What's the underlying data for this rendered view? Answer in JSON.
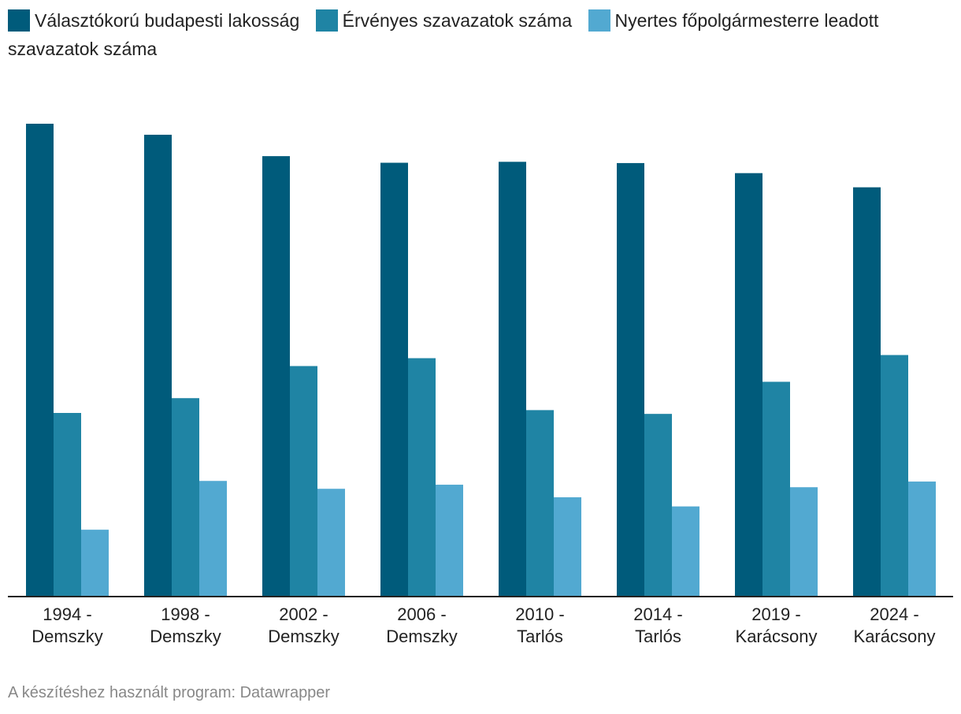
{
  "chart_data": {
    "type": "bar",
    "title": "",
    "xlabel": "",
    "ylabel": "",
    "ylim": [
      0,
      1500000
    ],
    "categories": [
      [
        "1994 -",
        "Demszky"
      ],
      [
        "1998 -",
        "Demszky"
      ],
      [
        "2002 -",
        "Demszky"
      ],
      [
        "2006 -",
        "Demszky"
      ],
      [
        "2010 -",
        "Tarlós"
      ],
      [
        "2014 -",
        "Tarlós"
      ],
      [
        "2019 -",
        "Karácsony"
      ],
      [
        "2024 -",
        "Karácsony"
      ]
    ],
    "series": [
      {
        "name": "Választókorú budapesti lakosság",
        "color": "#005b7b",
        "values": [
          1500000,
          1465000,
          1397000,
          1376000,
          1379000,
          1375000,
          1343000,
          1298000
        ]
      },
      {
        "name": "Érvényes szavazatok száma",
        "color": "#1f84a4",
        "values": [
          581000,
          628000,
          730000,
          755000,
          590000,
          578000,
          680000,
          765000
        ]
      },
      {
        "name": "Nyertes főpolgármesterre leadott szavazatok száma",
        "color": "#52a9d1",
        "values": [
          210000,
          365000,
          340000,
          353000,
          313000,
          284000,
          345000,
          363000
        ]
      }
    ],
    "grid": false,
    "legend_position": "top-left"
  },
  "footer": {
    "source": "A készítéshez használt program: Datawrapper"
  }
}
